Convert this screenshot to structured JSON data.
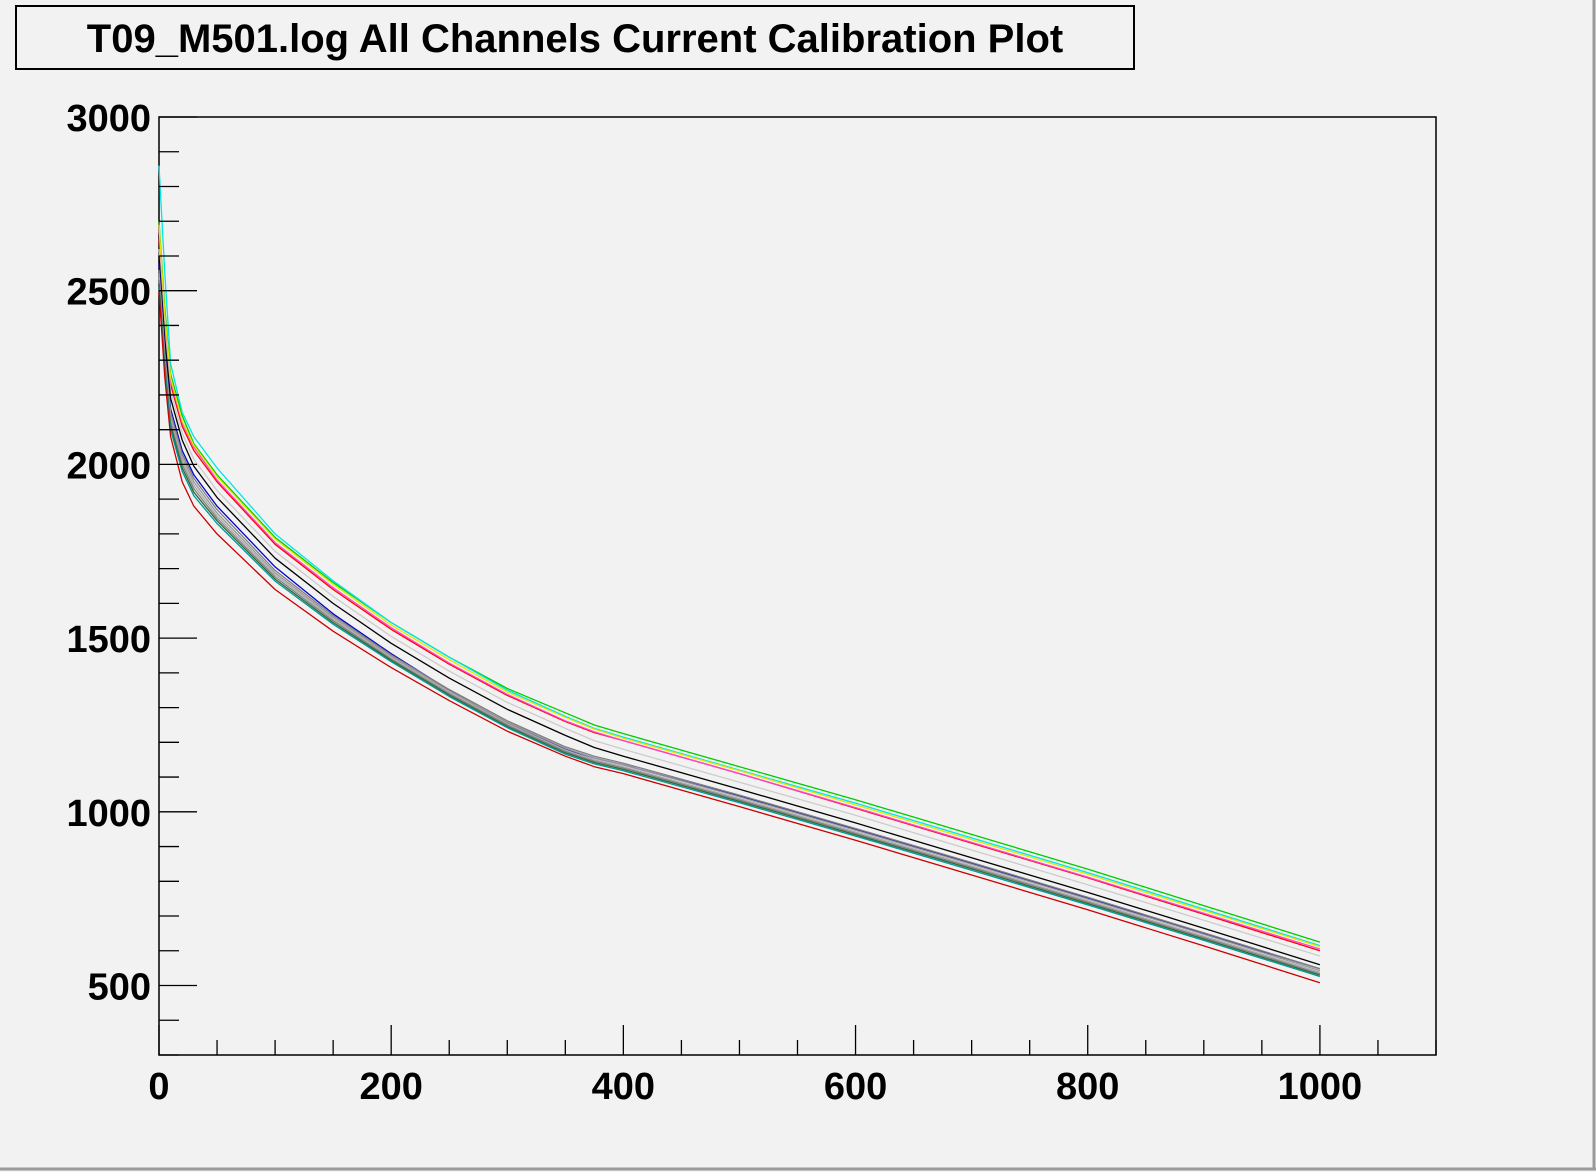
{
  "chart_data": {
    "type": "line",
    "title": "T09_M501.log All Channels Current Calibration Plot",
    "xlabel": "",
    "ylabel": "",
    "xlim": [
      0,
      1100
    ],
    "ylim": [
      300,
      3000
    ],
    "x_ticks": [
      0,
      200,
      400,
      600,
      800,
      1000
    ],
    "x_tick_labels": [
      "0",
      "200",
      "400",
      "600",
      "800",
      "1000"
    ],
    "y_ticks": [
      500,
      1000,
      1500,
      2000,
      2500,
      3000
    ],
    "y_tick_labels": [
      "500",
      "1000",
      "1500",
      "2000",
      "2500",
      "3000"
    ],
    "grid": false,
    "legend": "none",
    "x": [
      0,
      5,
      10,
      20,
      30,
      50,
      100,
      150,
      200,
      250,
      300,
      350,
      375,
      400,
      500,
      600,
      700,
      800,
      900,
      1000
    ],
    "series": [
      {
        "color": "#00cc00",
        "values": [
          2700,
          2450,
          2260,
          2140,
          2060,
          1970,
          1790,
          1660,
          1545,
          1445,
          1355,
          1285,
          1250,
          1225,
          1130,
          1035,
          935,
          835,
          730,
          625
        ]
      },
      {
        "color": "#00e5e5",
        "values": [
          2860,
          2550,
          2290,
          2150,
          2080,
          1990,
          1800,
          1665,
          1545,
          1445,
          1350,
          1275,
          1240,
          1215,
          1120,
          1025,
          925,
          825,
          720,
          615
        ]
      },
      {
        "color": "#ff0000",
        "values": [
          2650,
          2400,
          2230,
          2110,
          2040,
          1950,
          1770,
          1640,
          1525,
          1425,
          1335,
          1260,
          1228,
          1205,
          1110,
          1010,
          910,
          810,
          705,
          600
        ]
      },
      {
        "color": "#ff44cc",
        "values": [
          2680,
          2420,
          2240,
          2120,
          2050,
          1955,
          1775,
          1645,
          1530,
          1428,
          1338,
          1262,
          1230,
          1205,
          1110,
          1012,
          912,
          812,
          708,
          605
        ]
      },
      {
        "color": "#e5e500",
        "values": [
          2690,
          2430,
          2250,
          2125,
          2055,
          1965,
          1785,
          1655,
          1538,
          1438,
          1345,
          1272,
          1238,
          1212,
          1118,
          1020,
          920,
          820,
          716,
          612
        ]
      },
      {
        "color": "#cccccc",
        "values": [
          2620,
          2380,
          2210,
          2090,
          2015,
          1925,
          1750,
          1620,
          1505,
          1405,
          1315,
          1240,
          1205,
          1180,
          1085,
          990,
          890,
          790,
          688,
          585
        ]
      },
      {
        "color": "#000000",
        "values": [
          2600,
          2360,
          2190,
          2070,
          1995,
          1905,
          1730,
          1600,
          1485,
          1385,
          1295,
          1220,
          1185,
          1160,
          1065,
          968,
          868,
          768,
          665,
          560
        ]
      },
      {
        "color": "#0000cc",
        "values": [
          2580,
          2330,
          2160,
          2040,
          1970,
          1880,
          1705,
          1570,
          1455,
          1350,
          1255,
          1180,
          1155,
          1135,
          1045,
          950,
          852,
          752,
          650,
          548
        ]
      },
      {
        "color": "#7f7f7f",
        "values": [
          2560,
          2320,
          2150,
          2030,
          1960,
          1870,
          1695,
          1565,
          1452,
          1352,
          1262,
          1187,
          1160,
          1140,
          1048,
          952,
          854,
          754,
          652,
          548
        ]
      },
      {
        "color": "#999999",
        "values": [
          2550,
          2310,
          2140,
          2020,
          1950,
          1860,
          1688,
          1560,
          1448,
          1348,
          1258,
          1183,
          1155,
          1135,
          1043,
          947,
          849,
          749,
          647,
          543
        ]
      },
      {
        "color": "#aaaaaa",
        "values": [
          2540,
          2300,
          2130,
          2010,
          1940,
          1852,
          1682,
          1555,
          1444,
          1344,
          1254,
          1178,
          1150,
          1130,
          1038,
          942,
          844,
          744,
          642,
          538
        ]
      },
      {
        "color": "#808080",
        "values": [
          2530,
          2290,
          2120,
          2000,
          1930,
          1845,
          1676,
          1550,
          1440,
          1340,
          1250,
          1174,
          1146,
          1126,
          1034,
          938,
          840,
          740,
          638,
          534
        ]
      },
      {
        "color": "#336633",
        "values": [
          2520,
          2280,
          2110,
          1990,
          1920,
          1838,
          1670,
          1545,
          1436,
          1336,
          1246,
          1170,
          1142,
          1122,
          1030,
          934,
          836,
          736,
          634,
          530
        ]
      },
      {
        "color": "#009999",
        "values": [
          2510,
          2270,
          2100,
          1980,
          1910,
          1830,
          1664,
          1540,
          1432,
          1332,
          1242,
          1166,
          1138,
          1118,
          1026,
          930,
          832,
          732,
          630,
          526
        ]
      },
      {
        "color": "#cc0000",
        "values": [
          2500,
          2250,
          2080,
          1950,
          1880,
          1800,
          1640,
          1520,
          1415,
          1320,
          1232,
          1160,
          1130,
          1110,
          1015,
          918,
          818,
          718,
          614,
          508
        ]
      }
    ]
  }
}
